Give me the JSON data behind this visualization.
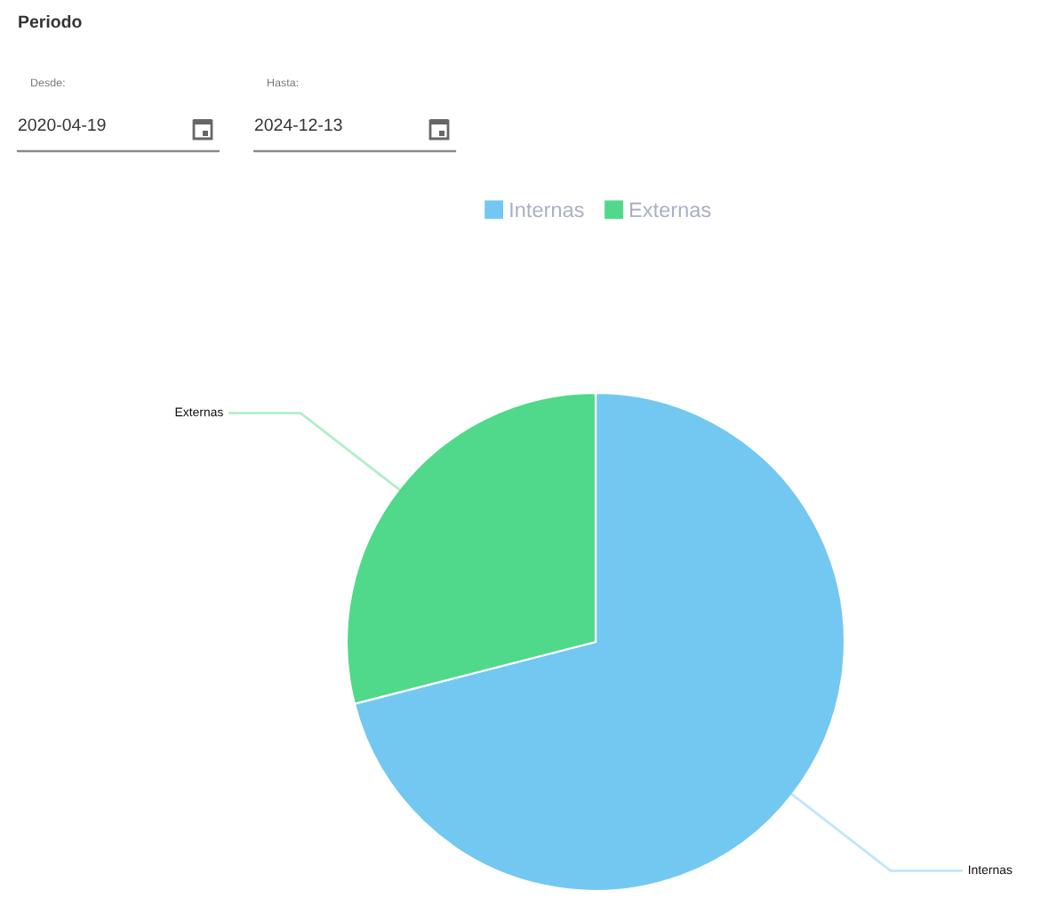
{
  "chart_data": {
    "type": "pie",
    "categories": [
      "Internas",
      "Externas"
    ],
    "values": [
      71,
      29
    ],
    "colors": [
      "#73c8f1",
      "#50d98a"
    ],
    "legend": "top",
    "annotations": [
      "Periodo",
      "Desde:",
      "2020-04-19",
      "Hasta:",
      "2024-12-13"
    ]
  }
}
